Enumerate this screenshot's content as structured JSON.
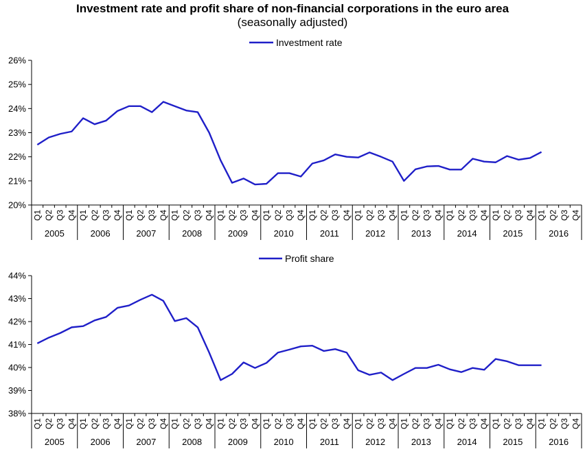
{
  "header": {
    "title": "Investment rate and profit share of non-financial corporations in the euro area",
    "subtitle": "(seasonally adjusted)"
  },
  "chart_data": [
    {
      "type": "line",
      "series": [
        {
          "name": "Investment rate",
          "color": "#1f1fc8",
          "values": [
            22.5,
            22.8,
            22.95,
            23.05,
            23.6,
            23.35,
            23.5,
            23.9,
            24.1,
            24.1,
            23.85,
            24.28,
            24.1,
            23.92,
            23.85,
            23.0,
            21.85,
            20.92,
            21.1,
            20.85,
            20.88,
            21.32,
            21.32,
            21.18,
            21.72,
            21.85,
            22.1,
            22.0,
            21.97,
            22.18,
            22.0,
            21.8,
            21.0,
            21.48,
            21.6,
            21.62,
            21.47,
            21.47,
            21.92,
            21.8,
            21.77,
            22.03,
            21.88,
            21.95,
            22.2
          ]
        }
      ],
      "quarters": [
        "Q1",
        "Q2",
        "Q3",
        "Q4"
      ],
      "years": [
        "2005",
        "2006",
        "2007",
        "2008",
        "2009",
        "2010",
        "2011",
        "2012",
        "2013",
        "2014",
        "2015",
        "2016"
      ],
      "ylim": [
        20,
        26
      ],
      "yticks": [
        "26%",
        "25%",
        "24%",
        "23%",
        "22%",
        "21%",
        "20%"
      ],
      "grid": false,
      "legend": "top-center"
    },
    {
      "type": "line",
      "series": [
        {
          "name": "Profit share",
          "color": "#1f1fc8",
          "values": [
            41.05,
            41.3,
            41.5,
            41.75,
            41.8,
            42.05,
            42.2,
            42.6,
            42.7,
            42.95,
            43.17,
            42.9,
            42.02,
            42.15,
            41.75,
            40.65,
            39.45,
            39.72,
            40.22,
            39.98,
            40.2,
            40.65,
            40.78,
            40.92,
            40.95,
            40.72,
            40.8,
            40.65,
            39.88,
            39.68,
            39.78,
            39.45,
            39.72,
            39.98,
            39.98,
            40.12,
            39.92,
            39.8,
            39.98,
            39.9,
            40.37,
            40.27,
            40.1,
            40.1,
            40.1
          ]
        }
      ],
      "quarters": [
        "Q1",
        "Q2",
        "Q3",
        "Q4"
      ],
      "years": [
        "2005",
        "2006",
        "2007",
        "2008",
        "2009",
        "2010",
        "2011",
        "2012",
        "2013",
        "2014",
        "2015",
        "2016"
      ],
      "ylim": [
        38,
        44
      ],
      "yticks": [
        "44%",
        "43%",
        "42%",
        "41%",
        "40%",
        "39%",
        "38%"
      ],
      "grid": false,
      "legend": "top-center"
    }
  ]
}
